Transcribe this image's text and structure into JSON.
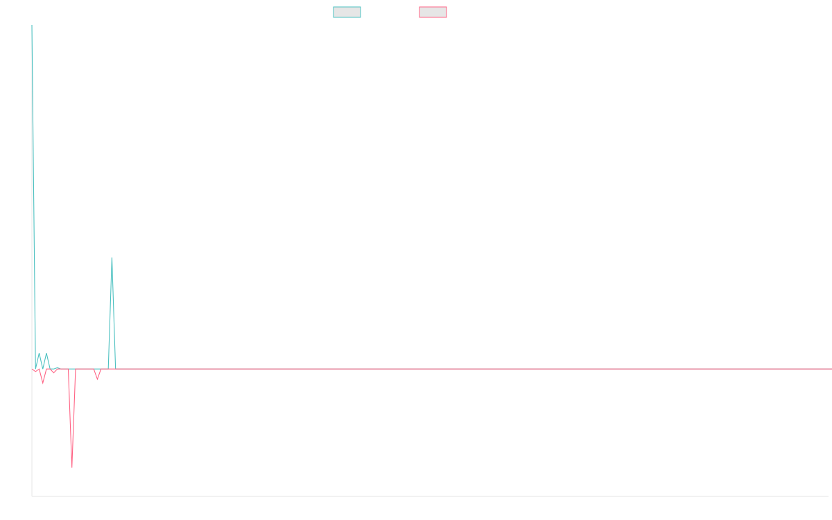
{
  "chart_data": {
    "type": "line",
    "title": "",
    "xlabel": "",
    "ylabel": "",
    "x_count": 220,
    "ylim": [
      -200,
      540
    ],
    "grid": false,
    "legend_position": "top-center",
    "series": [
      {
        "name": "",
        "color": "#4bc0c0",
        "fill": "#e6e6e6",
        "values": [
          540,
          0,
          25,
          0,
          25,
          0,
          0,
          2,
          0,
          0,
          0,
          0,
          0,
          0,
          0,
          0,
          0,
          0,
          0,
          0,
          0,
          0,
          175,
          0,
          0,
          0,
          0,
          0,
          0,
          0,
          0,
          0,
          0,
          0,
          0,
          0,
          0,
          0,
          0,
          0,
          0,
          0,
          0,
          0,
          0,
          0,
          0,
          0,
          0,
          0,
          0,
          0,
          0,
          0,
          0,
          0,
          0,
          0,
          0,
          0,
          0,
          0,
          0,
          0,
          0,
          0,
          0,
          0,
          0,
          0,
          0,
          0,
          0,
          0,
          0,
          0,
          0,
          0,
          0,
          0,
          0,
          0,
          0,
          0,
          0,
          0,
          0,
          0,
          0,
          0,
          0,
          0,
          0,
          0,
          0,
          0,
          0,
          0,
          0,
          0,
          0,
          0,
          0,
          0,
          0,
          0,
          0,
          0,
          0,
          0,
          0,
          0,
          0,
          0,
          0,
          0,
          0,
          0,
          0,
          0,
          0,
          0,
          0,
          0,
          0,
          0,
          0,
          0,
          0,
          0,
          0,
          0,
          0,
          0,
          0,
          0,
          0,
          0,
          0,
          0,
          0,
          0,
          0,
          0,
          0,
          0,
          0,
          0,
          0,
          0,
          0,
          0,
          0,
          0,
          0,
          0,
          0,
          0,
          0,
          0,
          0,
          0,
          0,
          0,
          0,
          0,
          0,
          0,
          0,
          0,
          0,
          0,
          0,
          0,
          0,
          0,
          0,
          0,
          0,
          0,
          0,
          0,
          0,
          0,
          0,
          0,
          0,
          0,
          0,
          0,
          0,
          0,
          0,
          0,
          0,
          0,
          0,
          0,
          0,
          0,
          0,
          0,
          0,
          0,
          0,
          0,
          0,
          0,
          0,
          0,
          0,
          0,
          0,
          0,
          0,
          0,
          0,
          0,
          0,
          0,
          0,
          0
        ]
      },
      {
        "name": "",
        "color": "#ff6384",
        "fill": "#e6e6e6",
        "values": [
          0,
          -4,
          0,
          -22,
          0,
          0,
          -6,
          0,
          0,
          0,
          0,
          -155,
          0,
          0,
          0,
          0,
          0,
          0,
          -16,
          0,
          0,
          0,
          0,
          0,
          0,
          0,
          0,
          0,
          0,
          0,
          0,
          0,
          0,
          0,
          0,
          0,
          0,
          0,
          0,
          0,
          0,
          0,
          0,
          0,
          0,
          0,
          0,
          0,
          0,
          0,
          0,
          0,
          0,
          0,
          0,
          0,
          0,
          0,
          0,
          0,
          0,
          0,
          0,
          0,
          0,
          0,
          0,
          0,
          0,
          0,
          0,
          0,
          0,
          0,
          0,
          0,
          0,
          0,
          0,
          0,
          0,
          0,
          0,
          0,
          0,
          0,
          0,
          0,
          0,
          0,
          0,
          0,
          0,
          0,
          0,
          0,
          0,
          0,
          0,
          0,
          0,
          0,
          0,
          0,
          0,
          0,
          0,
          0,
          0,
          0,
          0,
          0,
          0,
          0,
          0,
          0,
          0,
          0,
          0,
          0,
          0,
          0,
          0,
          0,
          0,
          0,
          0,
          0,
          0,
          0,
          0,
          0,
          0,
          0,
          0,
          0,
          0,
          0,
          0,
          0,
          0,
          0,
          0,
          0,
          0,
          0,
          0,
          0,
          0,
          0,
          0,
          0,
          0,
          0,
          0,
          0,
          0,
          0,
          0,
          0,
          0,
          0,
          0,
          0,
          0,
          0,
          0,
          0,
          0,
          0,
          0,
          0,
          0,
          0,
          0,
          0,
          0,
          0,
          0,
          0,
          0,
          0,
          0,
          0,
          0,
          0,
          0,
          0,
          0,
          0,
          0,
          0,
          0,
          0,
          0,
          0,
          0,
          0,
          0,
          0,
          0,
          0,
          0,
          0,
          0,
          0,
          0,
          0,
          0,
          0,
          0,
          0,
          0,
          0,
          0,
          0,
          0,
          0,
          0,
          0,
          0,
          0,
          0
        ]
      }
    ]
  }
}
